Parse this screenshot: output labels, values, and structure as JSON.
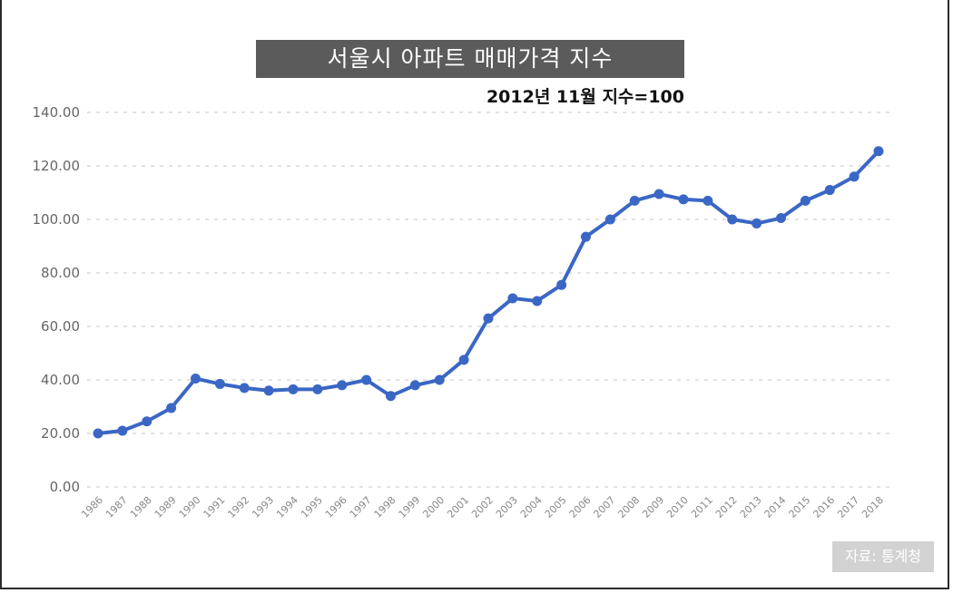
{
  "chart_data": {
    "type": "line",
    "title": "서울시 아파트 매매가격 지수",
    "subtitle": "2012년 11월 지수=100",
    "source": "자료: 통계청",
    "xlabel": "",
    "ylabel": "",
    "ylim": [
      0,
      140
    ],
    "y_ticks": [
      "0.00",
      "20.00",
      "40.00",
      "60.00",
      "80.00",
      "100.00",
      "120.00",
      "140.00"
    ],
    "y_tick_values": [
      0,
      20,
      40,
      60,
      80,
      100,
      120,
      140
    ],
    "grid": "horizontal-dashed",
    "legend": "none",
    "line_color": "#3b67c4",
    "categories": [
      "1986",
      "1987",
      "1988",
      "1989",
      "1990",
      "1991",
      "1992",
      "1993",
      "1994",
      "1995",
      "1996",
      "1997",
      "1998",
      "1999",
      "2000",
      "2001",
      "2002",
      "2003",
      "2004",
      "2005",
      "2006",
      "2007",
      "2008",
      "2009",
      "2010",
      "2011",
      "2012",
      "2013",
      "2014",
      "2015",
      "2016",
      "2017",
      "2018"
    ],
    "values": [
      20.0,
      21.0,
      24.5,
      29.5,
      40.5,
      38.5,
      37.0,
      36.0,
      36.5,
      36.5,
      38.0,
      40.0,
      34.0,
      38.0,
      40.0,
      47.5,
      63.0,
      70.5,
      69.5,
      75.5,
      93.5,
      100.0,
      107.0,
      109.5,
      107.5,
      107.0,
      100.0,
      98.5,
      100.5,
      107.0,
      111.0,
      116.0,
      125.5
    ]
  }
}
